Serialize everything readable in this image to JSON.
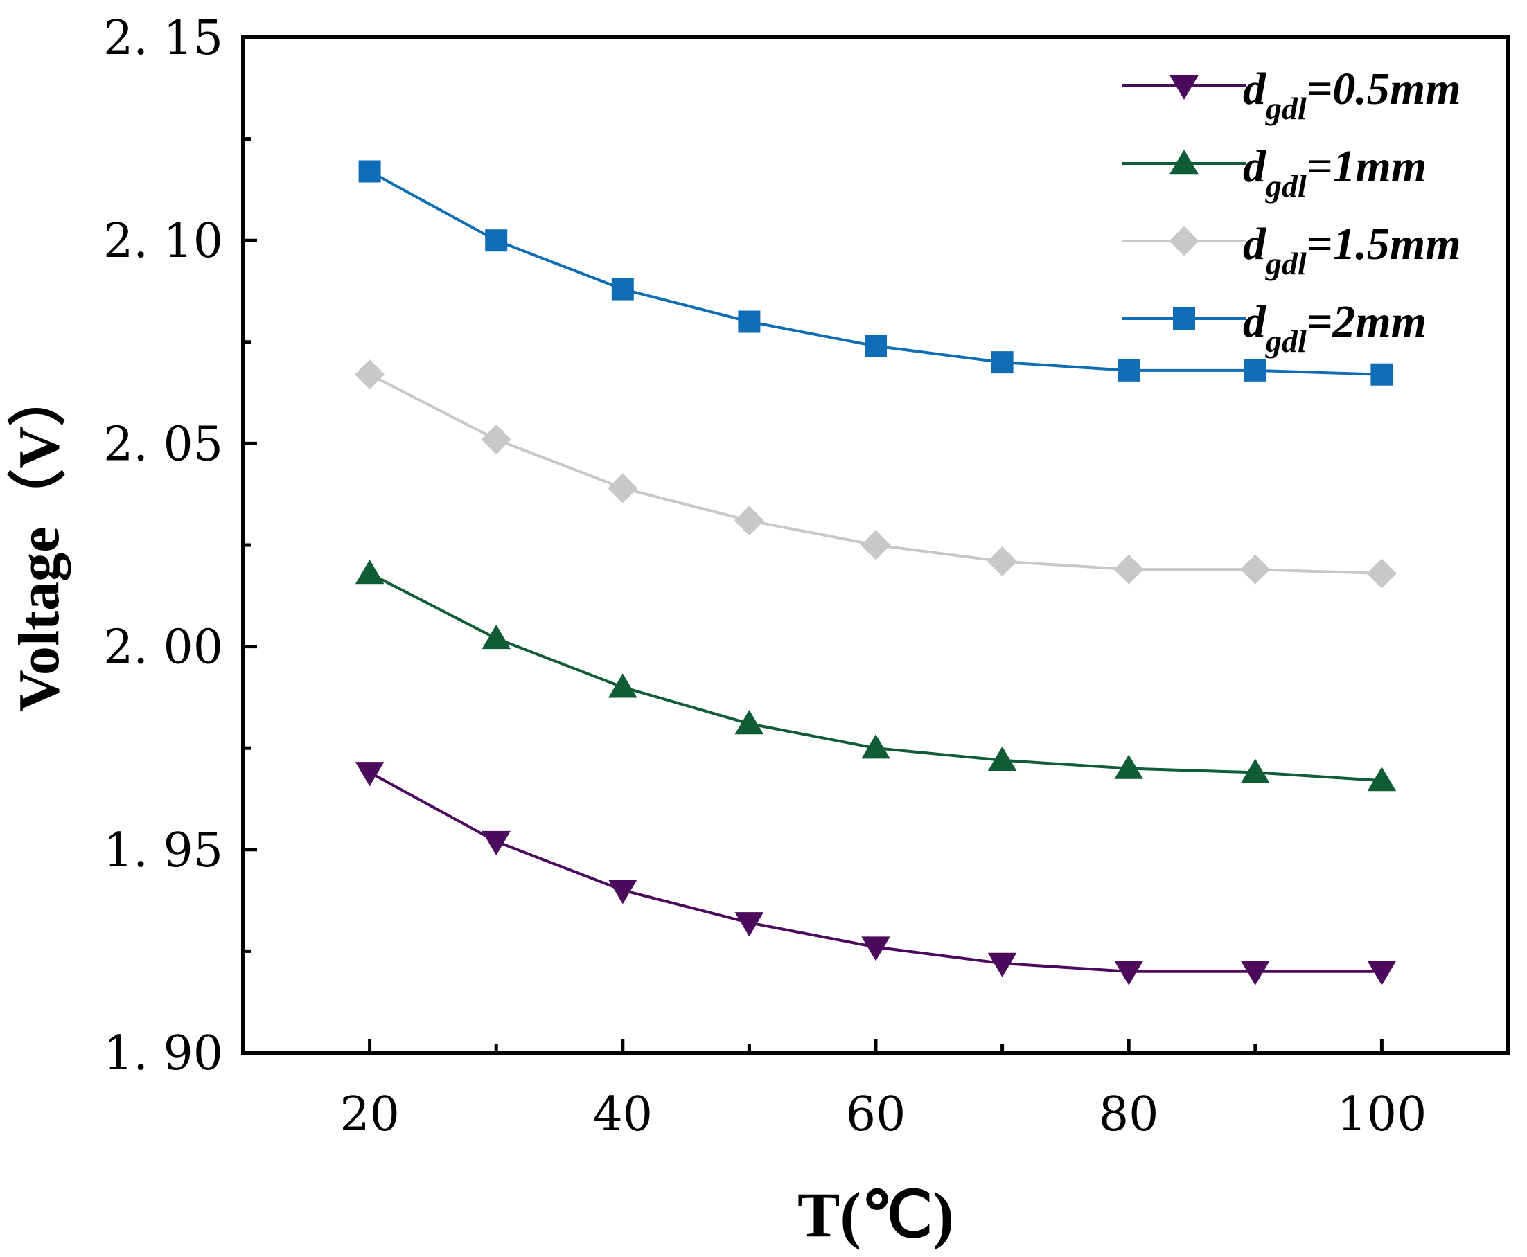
{
  "chart_data": {
    "type": "line",
    "title": "",
    "xlabel": "T(℃)",
    "ylabel": "Voltage（V）",
    "xlim": [
      10,
      110
    ],
    "ylim": [
      1.9,
      2.15
    ],
    "xticks": [
      20,
      40,
      60,
      80,
      100
    ],
    "xtick_labels": [
      "20",
      "40",
      "60",
      "80",
      "100"
    ],
    "yticks": [
      1.9,
      1.95,
      2.0,
      2.05,
      2.1,
      2.15
    ],
    "ytick_labels": [
      "1. 90",
      "1. 95",
      "2. 00",
      "2. 05",
      "2. 10",
      "2. 15"
    ],
    "grid": false,
    "legend_position": "top-right",
    "x": [
      20,
      30,
      40,
      50,
      60,
      70,
      80,
      90,
      100
    ],
    "series": [
      {
        "name": "d_gdl=0.5mm",
        "label_main": "d",
        "label_sub": "gdl",
        "label_tail": "=0.5mm",
        "color": "#4b0a5b",
        "marker": "triangle-down",
        "values": [
          1.969,
          1.952,
          1.94,
          1.932,
          1.926,
          1.922,
          1.92,
          1.92,
          1.92
        ]
      },
      {
        "name": "d_gdl=1mm",
        "label_main": "d",
        "label_sub": "gdl",
        "label_tail": "=1mm",
        "color": "#0f5c35",
        "marker": "triangle-up",
        "values": [
          2.018,
          2.002,
          1.99,
          1.981,
          1.975,
          1.972,
          1.97,
          1.969,
          1.967
        ]
      },
      {
        "name": "d_gdl=1.5mm",
        "label_main": "d",
        "label_sub": "gdl",
        "label_tail": "=1.5mm",
        "color": "#c8c8c8",
        "marker": "diamond",
        "values": [
          2.067,
          2.051,
          2.039,
          2.031,
          2.025,
          2.021,
          2.019,
          2.019,
          2.018
        ]
      },
      {
        "name": "d_gdl=2mm",
        "label_main": "d",
        "label_sub": "gdl",
        "label_tail": "=2mm",
        "color": "#0e6db4",
        "marker": "square",
        "values": [
          2.117,
          2.1,
          2.088,
          2.08,
          2.074,
          2.07,
          2.068,
          2.068,
          2.067
        ]
      }
    ]
  }
}
